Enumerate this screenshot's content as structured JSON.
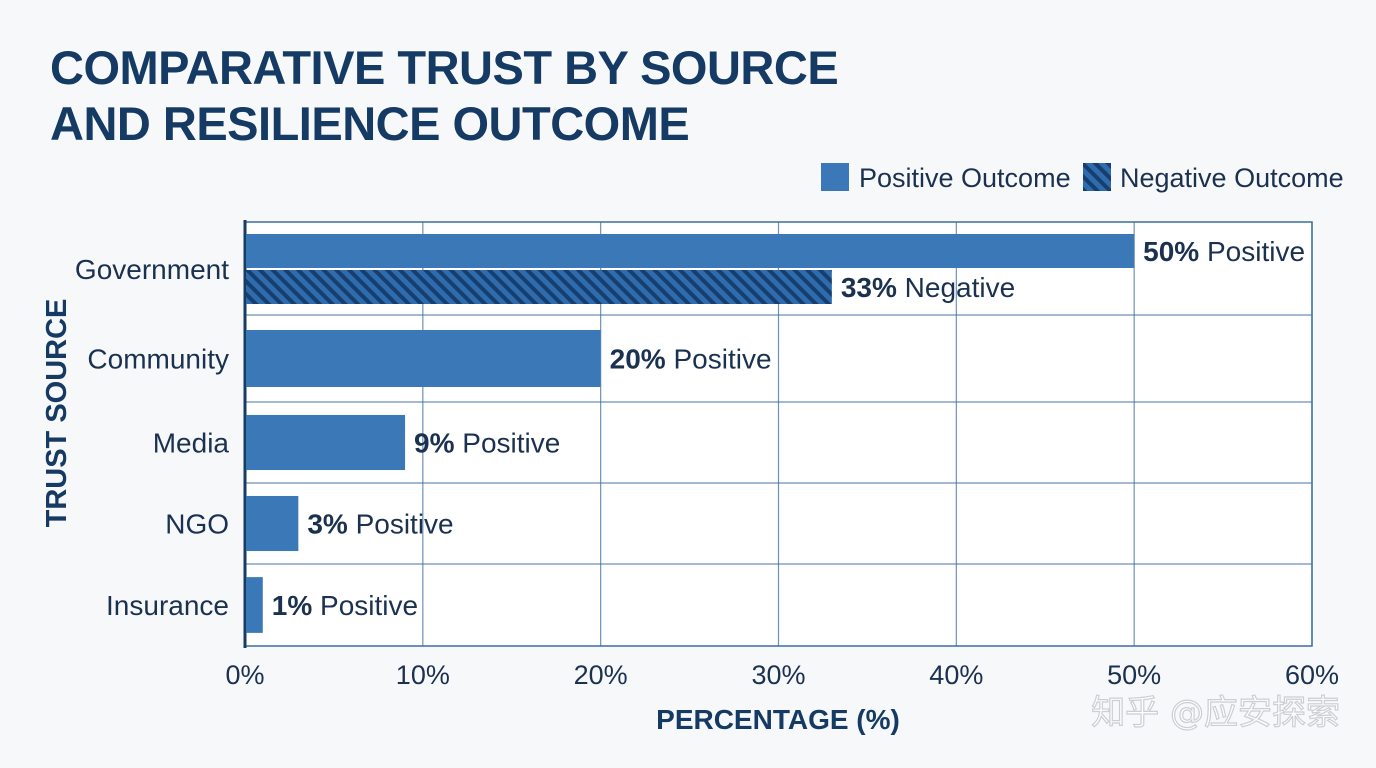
{
  "chart_data": {
    "type": "bar",
    "orientation": "horizontal",
    "title": [
      "COMPARATIVE TRUST BY SOURCE",
      "AND RESILIENCE OUTCOME"
    ],
    "xlabel": "PERCENTAGE (%)",
    "ylabel": "TRUST SOURCE",
    "xlim": [
      0,
      60
    ],
    "xticks": [
      0,
      10,
      20,
      30,
      40,
      50,
      60
    ],
    "xtick_labels": [
      "0%",
      "10%",
      "20%",
      "30%",
      "40%",
      "50%",
      "60%"
    ],
    "grid": true,
    "legend_position": "top-right",
    "categories": [
      "Government",
      "Community",
      "Media",
      "NGO",
      "Insurance"
    ],
    "series": [
      {
        "name": "Positive Outcome",
        "style": "solid",
        "color": "#3b78b8",
        "values": [
          50,
          20,
          9,
          3,
          1
        ],
        "data_labels": [
          {
            "bold": "50%",
            "text": " Positive"
          },
          {
            "bold": "20%",
            "text": " Positive"
          },
          {
            "bold": "9%",
            "text": " Positive"
          },
          {
            "bold": "3%",
            "text": " Positive"
          },
          {
            "bold": "1%",
            "text": " Positive"
          }
        ]
      },
      {
        "name": "Negative Outcome",
        "style": "hatched",
        "color": "#2a64a6",
        "values": [
          33,
          null,
          null,
          null,
          null
        ],
        "data_labels": [
          {
            "bold": "33%",
            "text": " Negative"
          },
          null,
          null,
          null,
          null
        ]
      }
    ]
  },
  "watermark": "知乎 @应安探索",
  "colors": {
    "title": "#153a63",
    "text": "#1b3150",
    "grid": "#3d6e9f",
    "positive": "#3b78b8",
    "negative_stripe": "#1f5a9c"
  }
}
